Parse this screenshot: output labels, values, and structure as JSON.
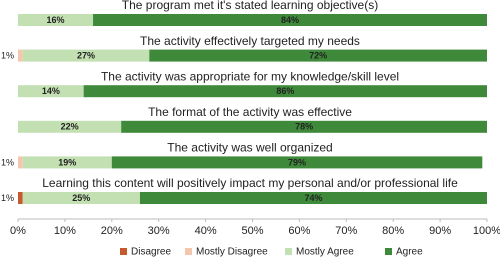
{
  "chart_data": {
    "type": "stacked-bar-horizontal",
    "categories": [
      "The program met it's stated learning objective(s)",
      "The activity effectively targeted my needs",
      "The activity was appropriate for my knowledge/skill  level",
      "The format of the activity was effective",
      "The activity was well organized",
      "Learning this content will positively impact my personal and/or professional life"
    ],
    "series": [
      {
        "name": "Disagree",
        "color": "#c65a2e",
        "values": [
          0,
          0,
          0,
          0,
          0,
          1
        ],
        "value_labels": [
          null,
          null,
          null,
          null,
          null,
          "1%"
        ]
      },
      {
        "name": "Mostly Disagree",
        "color": "#f5c6ae",
        "values": [
          0,
          1,
          0,
          0,
          1,
          0
        ],
        "value_labels": [
          null,
          "1%",
          null,
          null,
          "1%",
          null
        ]
      },
      {
        "name": "Mostly Agree",
        "color": "#c3e0b2",
        "values": [
          16,
          27,
          14,
          22,
          19,
          25
        ],
        "value_labels": [
          "16%",
          "27%",
          "14%",
          "22%",
          "19%",
          "25%"
        ]
      },
      {
        "name": "Agree",
        "color": "#3e8a3a",
        "values": [
          84,
          72,
          86,
          78,
          79,
          74
        ],
        "value_labels": [
          "84%",
          "72%",
          "86%",
          "78%",
          "79%",
          "74%"
        ]
      }
    ],
    "xlim": [
      0,
      100
    ],
    "xticks": [
      {
        "value": 0,
        "label": "0%"
      },
      {
        "value": 10,
        "label": "10%"
      },
      {
        "value": 20,
        "label": "20%"
      },
      {
        "value": 30,
        "label": "30%"
      },
      {
        "value": 40,
        "label": "40%"
      },
      {
        "value": 50,
        "label": "50%"
      },
      {
        "value": 60,
        "label": "60%"
      },
      {
        "value": 70,
        "label": "70%"
      },
      {
        "value": 80,
        "label": "80%"
      },
      {
        "value": 90,
        "label": "90%"
      },
      {
        "value": 100,
        "label": "100%"
      }
    ],
    "legend": "bottom"
  }
}
